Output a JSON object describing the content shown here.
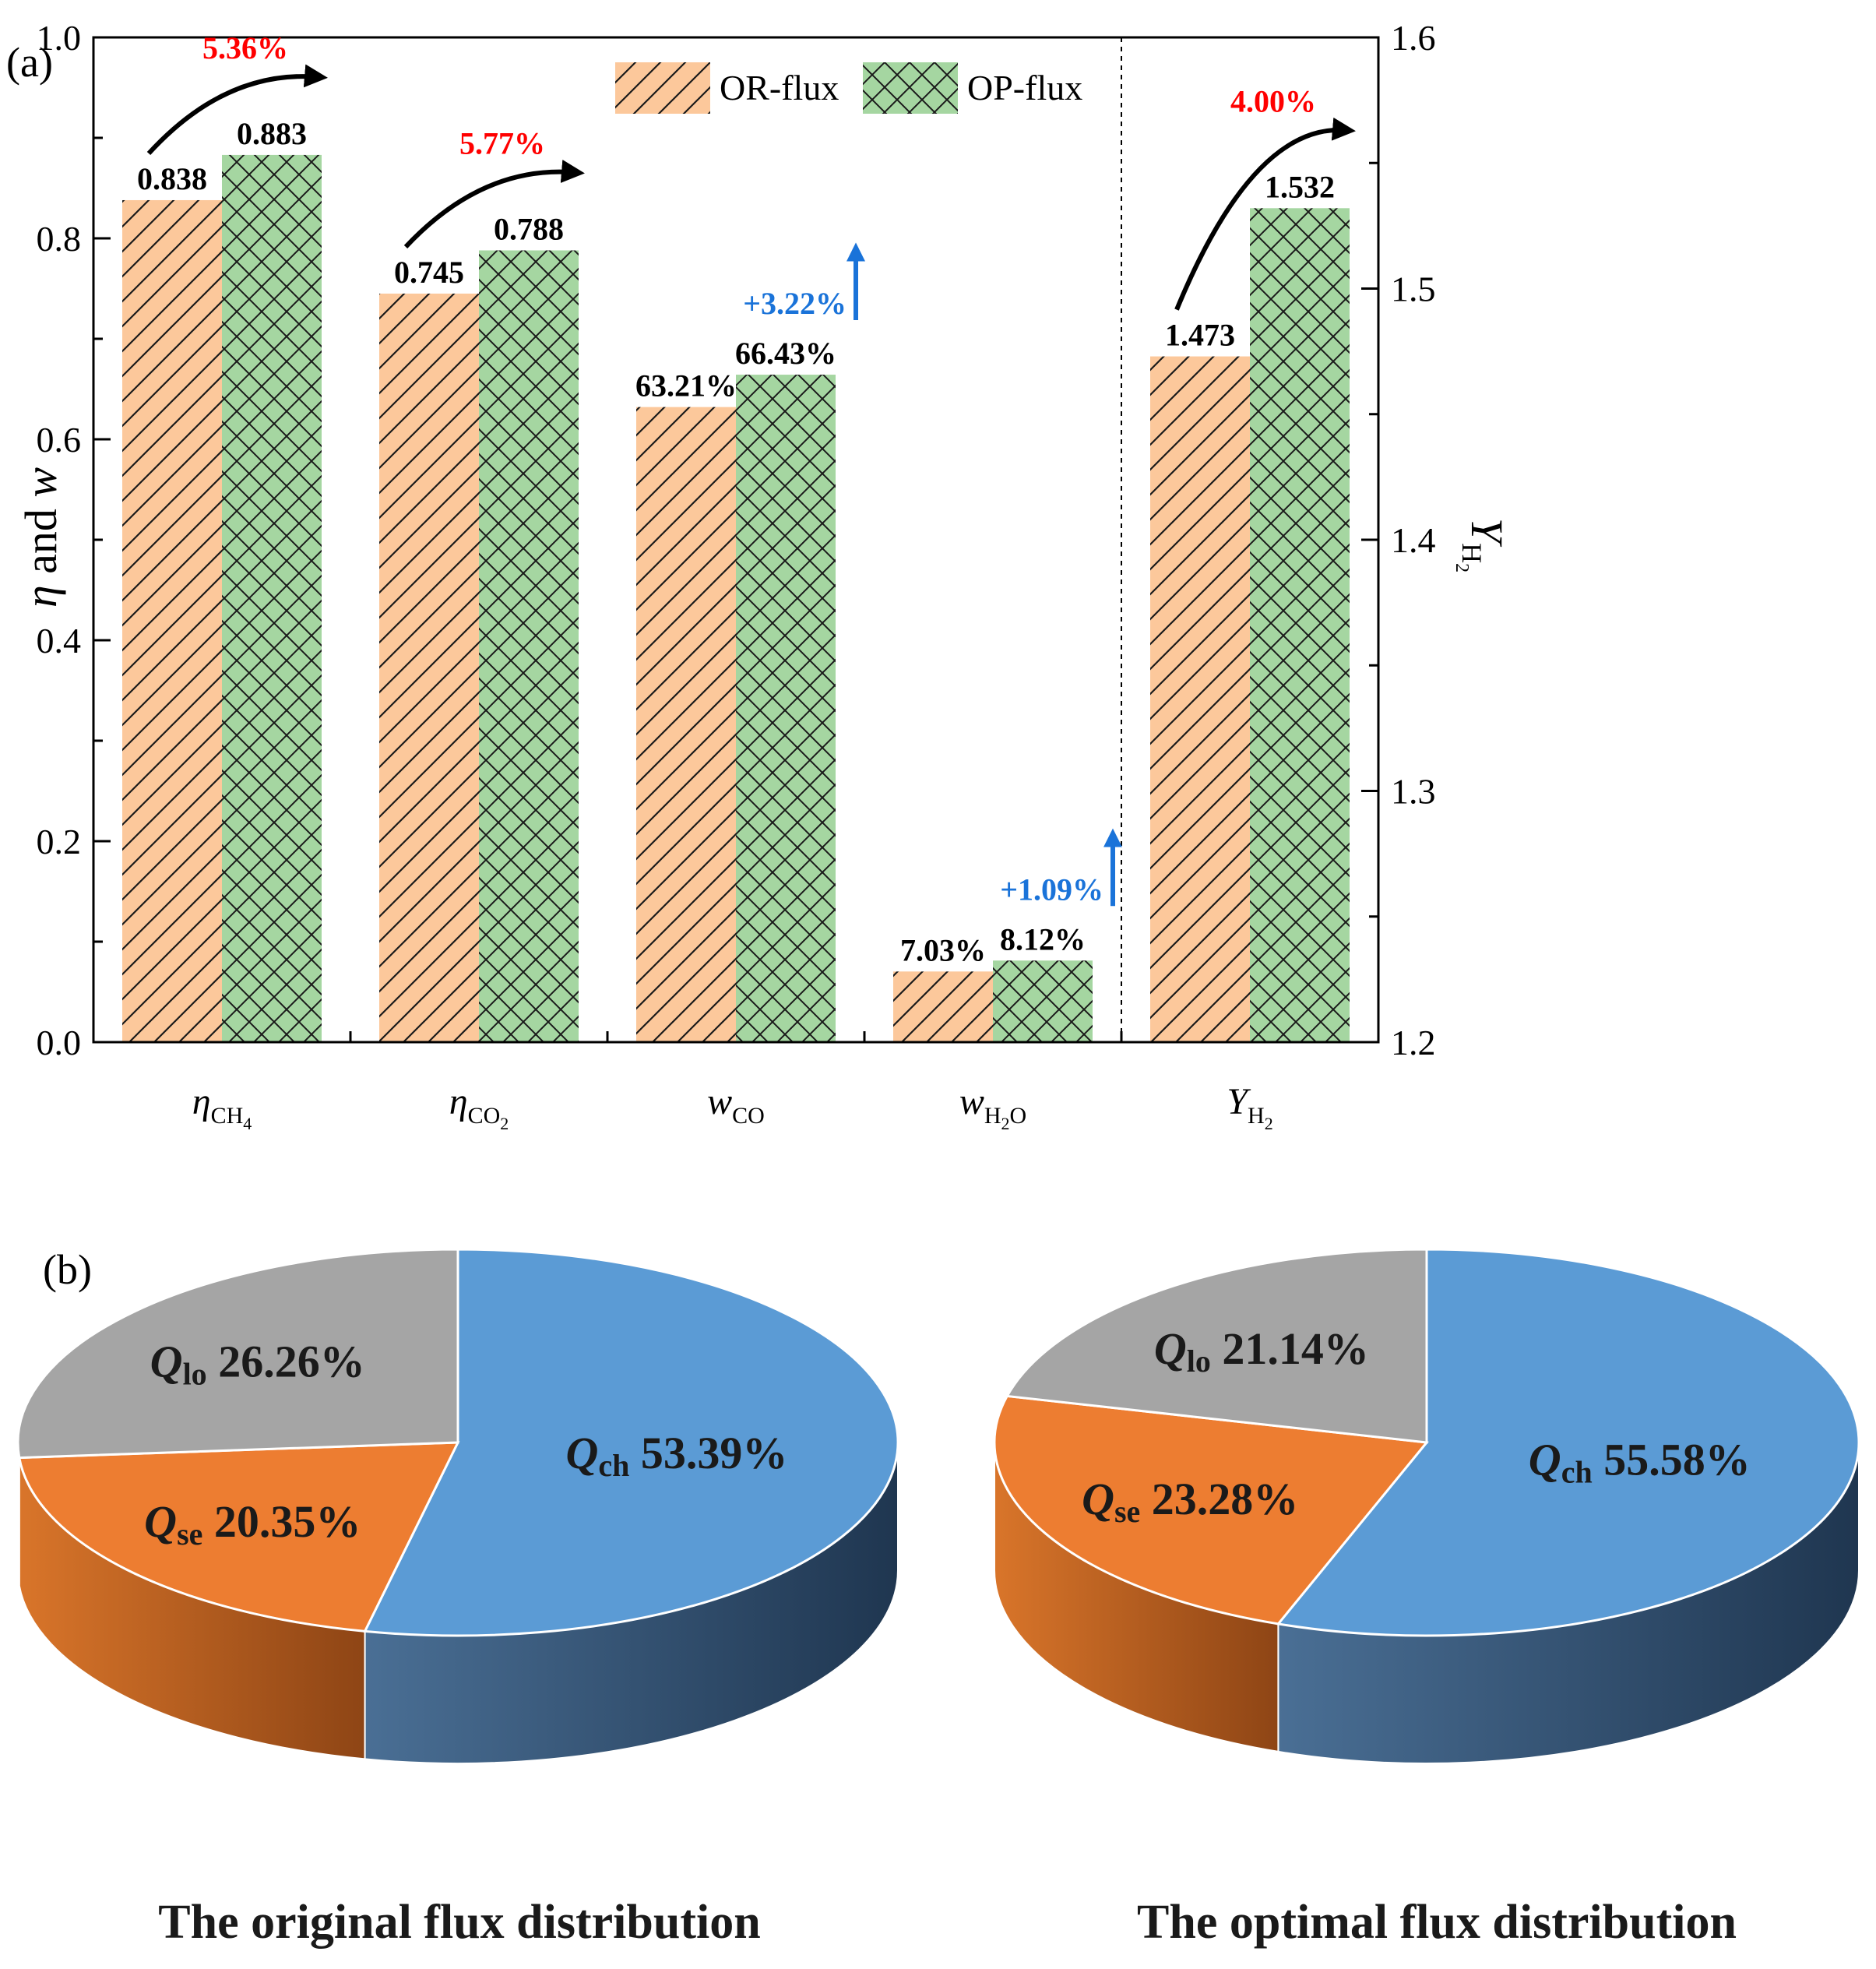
{
  "panel_a_label": "(a)",
  "panel_b_label": "(b)",
  "chart_data": [
    {
      "type": "bar",
      "title": "",
      "categories": [
        {
          "base": "η",
          "sub": "CH4",
          "sub_main": "CH",
          "sub_sub": "4",
          "italic_base": true
        },
        {
          "base": "η",
          "sub": "CO2",
          "sub_main": "CO",
          "sub_sub": "2",
          "italic_base": true
        },
        {
          "base": "w",
          "sub": "CO",
          "sub_main": "CO",
          "sub_sub": "",
          "italic_base": true
        },
        {
          "base": "w",
          "sub": "H2O",
          "sub_main": "H",
          "sub_sub": "2",
          "sub_tail": "O",
          "italic_base": true
        },
        {
          "base": "Y",
          "sub": "H2",
          "sub_main": "H",
          "sub_sub": "2",
          "italic_base": true
        }
      ],
      "series": [
        {
          "name": "OR-flux",
          "color": "#fcc89b",
          "hatch": "diagonal",
          "values": [
            0.838,
            0.745,
            0.6321,
            0.0703,
            1.473
          ],
          "labels": [
            "0.838",
            "0.745",
            "63.21%",
            "7.03%",
            "1.473"
          ]
        },
        {
          "name": "OP-flux",
          "color": "#a5d6a1",
          "hatch": "cross",
          "values": [
            0.883,
            0.788,
            0.6643,
            0.0812,
            1.532
          ],
          "labels": [
            "0.883",
            "0.788",
            "66.43%",
            "8.12%",
            "1.532"
          ]
        }
      ],
      "axis_assignment": [
        "left",
        "left",
        "left",
        "left",
        "right"
      ],
      "ylabel_left": {
        "italic1": "η",
        "mid": " and ",
        "italic2": "w"
      },
      "ylabel_right": {
        "base": "Y",
        "sub": "H",
        "subsub": "2"
      },
      "ylim_left": [
        0,
        1.0
      ],
      "ylim_right": [
        1.2,
        1.6
      ],
      "yticks_left": [
        "0.0",
        "0.2",
        "0.4",
        "0.6",
        "0.8",
        "1.0"
      ],
      "yticks_right": [
        "1.2",
        "1.3",
        "1.4",
        "1.5",
        "1.6"
      ],
      "annotations": [
        {
          "text": "5.36%",
          "color": "red",
          "category": 0,
          "arrow": "curved"
        },
        {
          "text": "5.77%",
          "color": "red",
          "category": 1,
          "arrow": "curved"
        },
        {
          "text": "+3.22%",
          "color": "blue",
          "category": 2,
          "arrow": "up"
        },
        {
          "text": "+1.09%",
          "color": "blue",
          "category": 3,
          "arrow": "up"
        },
        {
          "text": "4.00%",
          "color": "red",
          "category": 4,
          "arrow": "curved"
        }
      ],
      "legend_position": "top-right"
    },
    {
      "type": "pie",
      "title": "The original flux distribution",
      "slices": [
        {
          "name": "Qch",
          "base": "Q",
          "sub": "ch",
          "value": 53.39,
          "label": "53.39%",
          "color": "#5b9bd5"
        },
        {
          "name": "Qse",
          "base": "Q",
          "sub": "se",
          "value": 20.35,
          "label": "20.35%",
          "color": "#ed7d31"
        },
        {
          "name": "Qlo",
          "base": "Q",
          "sub": "lo",
          "value": 26.26,
          "label": "26.26%",
          "color": "#a5a5a5"
        }
      ]
    },
    {
      "type": "pie",
      "title": "The optimal flux distribution",
      "slices": [
        {
          "name": "Qch",
          "base": "Q",
          "sub": "ch",
          "value": 55.58,
          "label": "55.58%",
          "color": "#5b9bd5"
        },
        {
          "name": "Qse",
          "base": "Q",
          "sub": "se",
          "value": 23.28,
          "label": "23.28%",
          "color": "#ed7d31"
        },
        {
          "name": "Qlo",
          "base": "Q",
          "sub": "lo",
          "value": 21.14,
          "label": "21.14%",
          "color": "#a5a5a5"
        }
      ]
    }
  ]
}
